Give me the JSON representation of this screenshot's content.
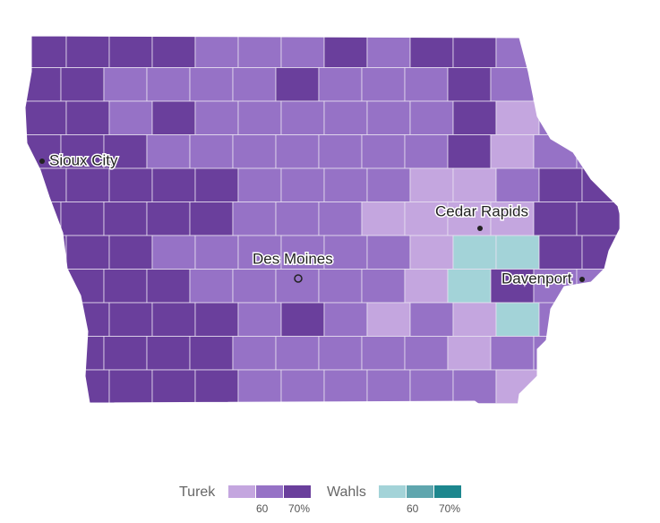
{
  "map": {
    "cities": [
      {
        "name": "Sioux City"
      },
      {
        "name": "Cedar Rapids"
      },
      {
        "name": "Des Moines"
      },
      {
        "name": "Davenport"
      }
    ],
    "legend": [
      {
        "name": "Turek",
        "colors": [
          "#c4a6df",
          "#9672c6",
          "#6a3f9c"
        ],
        "ticks": [
          "60",
          "70%"
        ]
      },
      {
        "name": "Wahls",
        "colors": [
          "#a3d3d8",
          "#5fa6ae",
          "#1d878e"
        ],
        "ticks": [
          "60",
          "70%"
        ]
      }
    ]
  }
}
